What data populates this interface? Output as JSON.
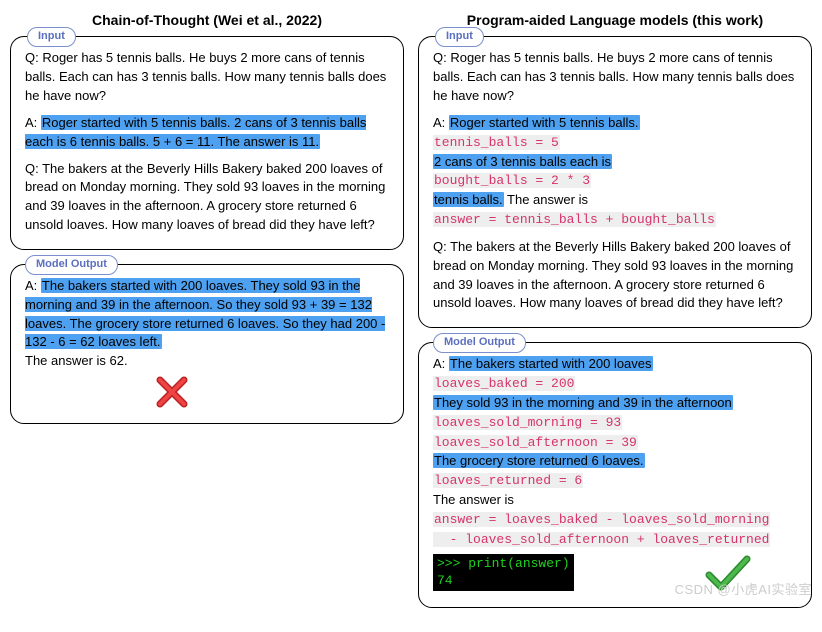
{
  "left": {
    "title": "Chain-of-Thought (Wei et al., 2022)",
    "input_tag": "Input",
    "output_tag": "Model Output",
    "colors": {
      "highlight": "#4ea1f0",
      "code_fg": "#d6336c",
      "code_bg": "#eeeeee"
    },
    "input_segments": [
      {
        "t": "Q: Roger has 5 tennis balls. He buys 2 more cans of tennis balls. Each can has 3 tennis balls. How many tennis balls does he have now?",
        "style": "plain"
      },
      {
        "t": "SPACE"
      },
      {
        "t": "A: ",
        "style": "plain"
      },
      {
        "t": "Roger started with 5 tennis balls. 2 cans of 3 tennis balls each is 6 tennis balls. 5 + 6 = 11. The answer is 11.",
        "style": "hl"
      },
      {
        "t": "SPACE"
      },
      {
        "t": "Q: The bakers at the Beverly Hills Bakery baked 200 loaves of bread on Monday morning. They sold 93 loaves in the morning and 39 loaves in the afternoon. A grocery store returned 6 unsold loaves. How many loaves of bread did they have left?",
        "style": "plain"
      }
    ],
    "output_segments": [
      {
        "t": "A: ",
        "style": "plain"
      },
      {
        "t": "The bakers started with 200 loaves. They sold 93 in the morning and 39 in the afternoon. So they sold 93 + 39 = 132 loaves. The grocery store returned 6 loaves. So they had 200 - 132 - 6 = 62 loaves left.",
        "style": "hl"
      },
      {
        "t": "BR"
      },
      {
        "t": "The answer is 62.",
        "style": "plain"
      }
    ]
  },
  "right": {
    "title": "Program-aided Language models (this work)",
    "input_tag": "Input",
    "output_tag": "Model Output",
    "input_segments": [
      {
        "t": "Q: Roger has 5 tennis balls. He buys 2 more cans of tennis balls. Each can has 3 tennis balls. How many tennis balls does he have now?",
        "style": "plain"
      },
      {
        "t": "SPACE"
      },
      {
        "t": "A: ",
        "style": "plain"
      },
      {
        "t": "Roger started with 5 tennis balls.",
        "style": "hl"
      },
      {
        "t": "BR"
      },
      {
        "t": "tennis_balls = 5",
        "style": "code"
      },
      {
        "t": "BR"
      },
      {
        "t": "2 cans of 3 tennis balls each is",
        "style": "hl"
      },
      {
        "t": "BR"
      },
      {
        "t": "bought_balls = 2 * 3",
        "style": "code"
      },
      {
        "t": "BR"
      },
      {
        "t": "tennis balls.",
        "style": "hl"
      },
      {
        "t": " The answer is",
        "style": "plain"
      },
      {
        "t": "BR"
      },
      {
        "t": "answer = tennis_balls + bought_balls",
        "style": "code"
      },
      {
        "t": "SPACE"
      },
      {
        "t": "Q: The bakers at the Beverly Hills Bakery baked 200 loaves of bread on Monday morning. They sold 93 loaves in the morning and 39 loaves in the afternoon. A grocery store returned 6 unsold loaves. How many loaves of bread did they have left?",
        "style": "plain"
      }
    ],
    "output_segments": [
      {
        "t": "A: ",
        "style": "plain"
      },
      {
        "t": "The bakers started with 200 loaves",
        "style": "hl"
      },
      {
        "t": "BR"
      },
      {
        "t": "loaves_baked = 200",
        "style": "code"
      },
      {
        "t": "BR"
      },
      {
        "t": "They sold 93 in the morning and 39 in the afternoon",
        "style": "hl"
      },
      {
        "t": "BR"
      },
      {
        "t": "loaves_sold_morning = 93",
        "style": "code"
      },
      {
        "t": "BR"
      },
      {
        "t": "loaves_sold_afternoon = 39",
        "style": "code"
      },
      {
        "t": "BR"
      },
      {
        "t": "The grocery store returned 6 loaves.",
        "style": "hl"
      },
      {
        "t": "BR"
      },
      {
        "t": "loaves_returned = 6",
        "style": "code"
      },
      {
        "t": "BR"
      },
      {
        "t": "The answer is",
        "style": "plain"
      },
      {
        "t": "BR"
      },
      {
        "t": "answer = loaves_baked - loaves_sold_morning",
        "style": "code"
      },
      {
        "t": "BR"
      },
      {
        "t": "  - loaves_sold_afternoon + loaves_returned",
        "style": "code"
      }
    ],
    "terminal": {
      "line1": ">>> print(answer)",
      "line2": "74",
      "bg": "#000000",
      "fg": "#1fd21f"
    }
  },
  "icons": {
    "wrong": {
      "stroke": "#bb2222",
      "fill": "#ee4444",
      "size": 34
    },
    "check": {
      "stroke": "#2a8a2a",
      "fill": "#4db84d",
      "size": 46
    }
  },
  "watermark": "CSDN @小虎AI实验室"
}
